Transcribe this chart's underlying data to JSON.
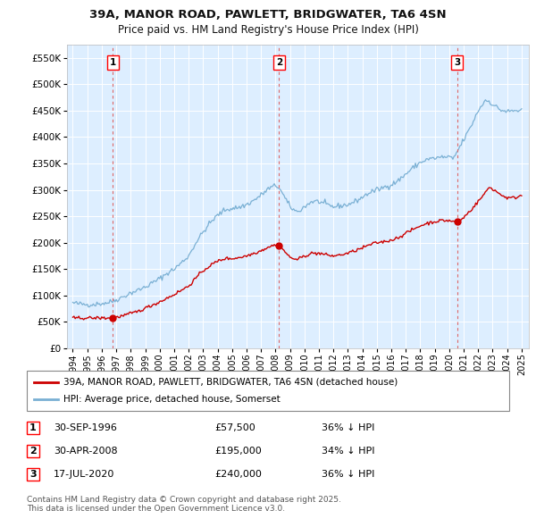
{
  "title_line1": "39A, MANOR ROAD, PAWLETT, BRIDGWATER, TA6 4SN",
  "title_line2": "Price paid vs. HM Land Registry's House Price Index (HPI)",
  "ylabel_ticks": [
    "£0",
    "£50K",
    "£100K",
    "£150K",
    "£200K",
    "£250K",
    "£300K",
    "£350K",
    "£400K",
    "£450K",
    "£500K",
    "£550K"
  ],
  "ytick_values": [
    0,
    50000,
    100000,
    150000,
    200000,
    250000,
    300000,
    350000,
    400000,
    450000,
    500000,
    550000
  ],
  "ylim": [
    0,
    575000
  ],
  "xlim_start": 1993.6,
  "xlim_end": 2025.5,
  "background_color": "#ffffff",
  "plot_bg_color": "#ddeeff",
  "grid_color": "#ffffff",
  "hpi_color": "#7ab0d4",
  "price_color": "#cc0000",
  "vline_color": "#dd6666",
  "purchases": [
    {
      "date_num": 1996.75,
      "price": 57500,
      "label": "1"
    },
    {
      "date_num": 2008.25,
      "price": 195000,
      "label": "2"
    },
    {
      "date_num": 2020.54,
      "price": 240000,
      "label": "3"
    }
  ],
  "purchase_labels": [
    {
      "label": "1",
      "date": "30-SEP-1996",
      "price": "£57,500",
      "pct": "36% ↓ HPI"
    },
    {
      "label": "2",
      "date": "30-APR-2008",
      "price": "£195,000",
      "pct": "34% ↓ HPI"
    },
    {
      "label": "3",
      "date": "17-JUL-2020",
      "price": "£240,000",
      "pct": "36% ↓ HPI"
    }
  ],
  "legend_line1": "39A, MANOR ROAD, PAWLETT, BRIDGWATER, TA6 4SN (detached house)",
  "legend_line2": "HPI: Average price, detached house, Somerset",
  "footnote": "Contains HM Land Registry data © Crown copyright and database right 2025.\nThis data is licensed under the Open Government Licence v3.0.",
  "xtick_years": [
    1994,
    1995,
    1996,
    1997,
    1998,
    1999,
    2000,
    2001,
    2002,
    2003,
    2004,
    2005,
    2006,
    2007,
    2008,
    2009,
    2010,
    2011,
    2012,
    2013,
    2014,
    2015,
    2016,
    2017,
    2018,
    2019,
    2020,
    2021,
    2022,
    2023,
    2024,
    2025
  ]
}
